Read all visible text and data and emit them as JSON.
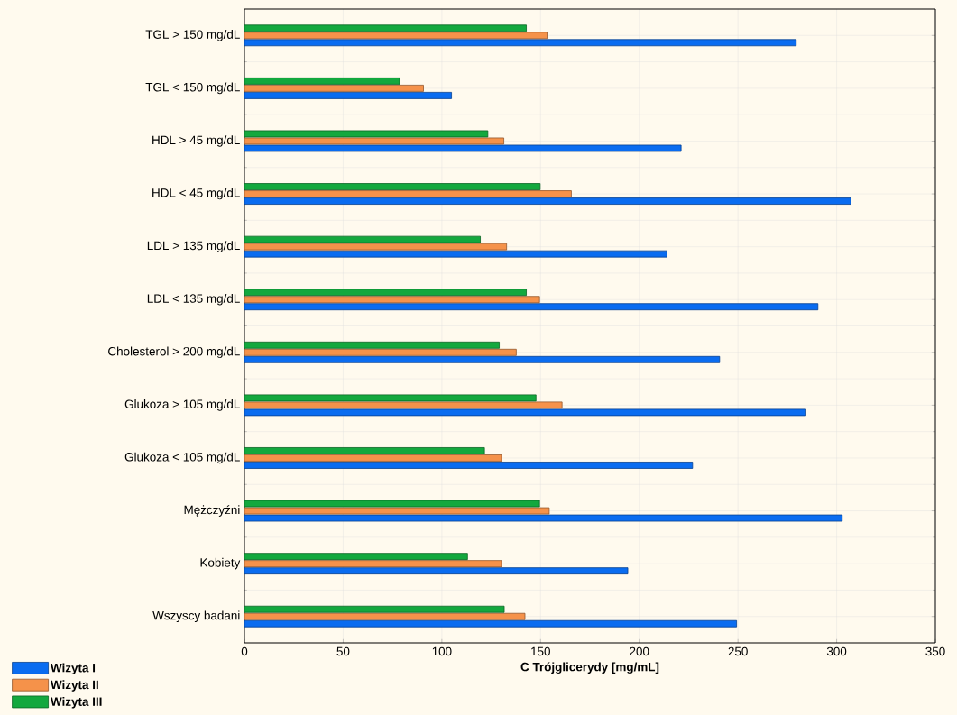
{
  "chart_data": {
    "type": "bar",
    "orientation": "horizontal",
    "categories": [
      "TGL > 150 mg/dL",
      "TGL < 150 mg/dL",
      "HDL > 45 mg/dL",
      "HDL < 45 mg/dL",
      "LDL > 135 mg/dL",
      "LDL < 135 mg/dL",
      "Cholesterol > 200 mg/dL",
      "Glukoza > 105 mg/dL",
      "Glukoza < 105 mg/dL",
      "Mężczyźni",
      "Kobiety",
      "Wszyscy badani"
    ],
    "series": [
      {
        "name": "Wizyta I",
        "color": "#0a6cf0",
        "values": [
          279.5,
          104.9,
          221.2,
          307.2,
          214.0,
          290.5,
          240.7,
          284.4,
          227.0,
          302.8,
          194.2,
          249.3
        ]
      },
      {
        "name": "Wizyta II",
        "color": "#f5924a",
        "values": [
          153.3,
          90.7,
          131.4,
          165.6,
          132.8,
          149.5,
          137.7,
          160.9,
          130.2,
          154.4,
          130.2,
          142.1
        ]
      },
      {
        "name": "Wizyta III",
        "color": "#13a83e",
        "values": [
          142.8,
          78.6,
          123.3,
          149.8,
          119.5,
          142.8,
          129.1,
          147.7,
          121.6,
          149.5,
          113.0,
          131.6
        ]
      }
    ],
    "xlabel": "C Trójglicerydy [mg/mL]",
    "xlim": [
      0,
      350
    ],
    "xticks": [
      0,
      50,
      100,
      150,
      200,
      250,
      300,
      350
    ],
    "grid": true,
    "legend": "bottom left"
  }
}
